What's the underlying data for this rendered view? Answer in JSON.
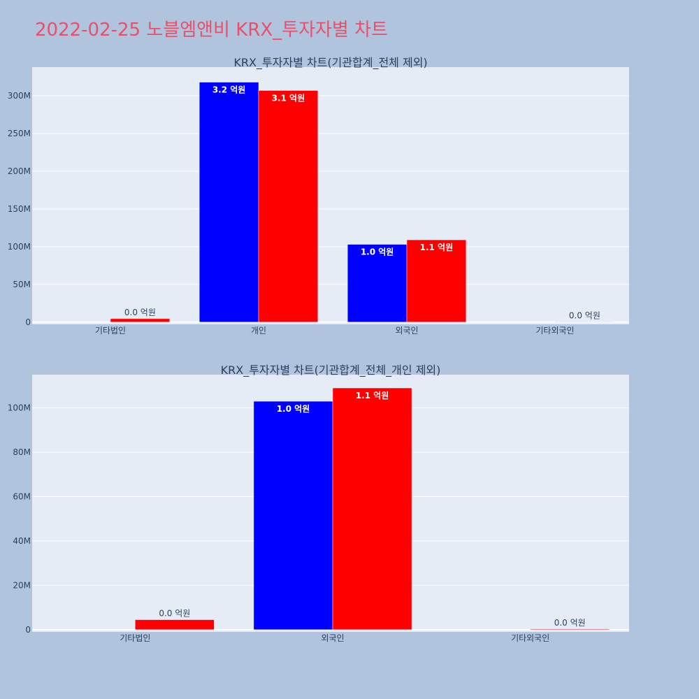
{
  "title": "2022-02-25 노블엠앤비 KRX_투자자별 차트",
  "colors": {
    "page_bg": "#b0c4de",
    "plot_bg": "#e5ecf6",
    "title": "#e8506a",
    "series_a": "#0000ff",
    "series_b": "#ff0000"
  },
  "chart_data": [
    {
      "type": "bar",
      "title": "KRX_투자자별 차트(기관합계_전체 제외)",
      "categories": [
        "기타법인",
        "개인",
        "외국인",
        "기타외국인"
      ],
      "ylim": [
        -3000000,
        338000000
      ],
      "yticks": [
        0,
        50000000,
        100000000,
        150000000,
        200000000,
        250000000,
        300000000
      ],
      "ytick_labels": [
        "0",
        "50M",
        "100M",
        "150M",
        "200M",
        "250M",
        "300M"
      ],
      "grid": true,
      "legend": "none",
      "series": [
        {
          "color": "#0000ff",
          "values": [
            0,
            318000000,
            103000000,
            0
          ],
          "labels": [
            "",
            "3.2 억원",
            "1.0 억원",
            ""
          ]
        },
        {
          "color": "#ff0000",
          "values": [
            4500000,
            307000000,
            109000000,
            300000
          ],
          "labels": [
            "0.0 억원",
            "3.1 억원",
            "1.1 억원",
            "0.0 억원"
          ]
        }
      ]
    },
    {
      "type": "bar",
      "title": "KRX_투자자별 차트(기관합계_전체_개인 제외)",
      "categories": [
        "기타법인",
        "외국인",
        "기타외국인"
      ],
      "ylim": [
        -1000000,
        115000000
      ],
      "yticks": [
        0,
        20000000,
        40000000,
        60000000,
        80000000,
        100000000
      ],
      "ytick_labels": [
        "0",
        "20M",
        "40M",
        "60M",
        "80M",
        "100M"
      ],
      "grid": true,
      "legend": "none",
      "series": [
        {
          "color": "#0000ff",
          "values": [
            0,
            103000000,
            0
          ],
          "labels": [
            "",
            "1.0 억원",
            ""
          ]
        },
        {
          "color": "#ff0000",
          "values": [
            4500000,
            109000000,
            300000
          ],
          "labels": [
            "0.0 억원",
            "1.1 억원",
            "0.0 억원"
          ]
        }
      ]
    }
  ]
}
